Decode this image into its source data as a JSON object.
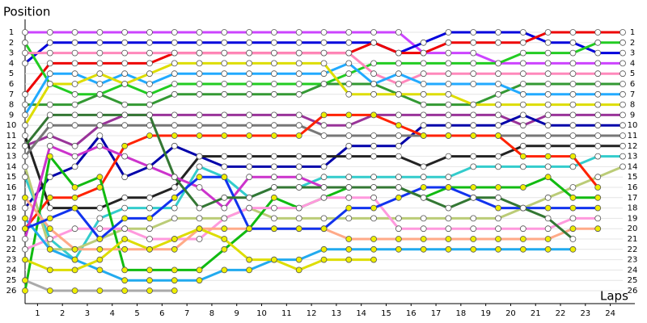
{
  "chart_data": {
    "type": "line",
    "y_axis_label": "Position",
    "x_axis_label": "Laps",
    "x": [
      0,
      1,
      2,
      3,
      4,
      5,
      6,
      7,
      8,
      9,
      10,
      11,
      12,
      13,
      14,
      15,
      16,
      17,
      18,
      19,
      20,
      21,
      22,
      23,
      24
    ],
    "xlim": [
      0,
      24
    ],
    "ylim": [
      1,
      26
    ],
    "y_inverted": true,
    "grid": true,
    "xticks": [
      {
        "value": 0.5,
        "label": "1"
      },
      {
        "value": 1.5,
        "label": "2"
      },
      {
        "value": 2.5,
        "label": "3"
      },
      {
        "value": 3.5,
        "label": "4"
      },
      {
        "value": 4.5,
        "label": "5"
      },
      {
        "value": 5.5,
        "label": "6"
      },
      {
        "value": 6.5,
        "label": "7"
      },
      {
        "value": 7.5,
        "label": "8"
      },
      {
        "value": 8.5,
        "label": "9"
      },
      {
        "value": 9.5,
        "label": "10"
      },
      {
        "value": 10.5,
        "label": "11"
      },
      {
        "value": 11.5,
        "label": "12"
      },
      {
        "value": 12.5,
        "label": "13"
      },
      {
        "value": 13.5,
        "label": "14"
      },
      {
        "value": 14.5,
        "label": "15"
      },
      {
        "value": 15.5,
        "label": "16"
      },
      {
        "value": 16.5,
        "label": "17"
      },
      {
        "value": 17.5,
        "label": "18"
      },
      {
        "value": 18.5,
        "label": "19"
      },
      {
        "value": 19.5,
        "label": "20"
      },
      {
        "value": 20.5,
        "label": "21"
      },
      {
        "value": 21.5,
        "label": "22"
      },
      {
        "value": 22.5,
        "label": "23"
      },
      {
        "value": 23.5,
        "label": "24"
      }
    ],
    "yticks": [
      1,
      2,
      3,
      4,
      5,
      6,
      7,
      8,
      9,
      10,
      11,
      12,
      13,
      14,
      15,
      16,
      17,
      18,
      19,
      20,
      21,
      22,
      23,
      24,
      25,
      26
    ],
    "series": [
      {
        "color": "#cc44ff",
        "marker_color": "#ffffff",
        "values": [
          1,
          1,
          1,
          1,
          1,
          1,
          1,
          1,
          1,
          1,
          1,
          1,
          1,
          1,
          1,
          1,
          3,
          3,
          3,
          4,
          4,
          4,
          4,
          4,
          4
        ]
      },
      {
        "color": "#0000dd",
        "marker_color": "#ffffff",
        "values": [
          4,
          2,
          2,
          2,
          2,
          2,
          2,
          2,
          2,
          2,
          2,
          2,
          2,
          2,
          2,
          3,
          2,
          1,
          1,
          1,
          1,
          2,
          2,
          3,
          3
        ]
      },
      {
        "color": "#ee0000",
        "marker_color": "#ffffff",
        "values": [
          7,
          4,
          4,
          4,
          4,
          4,
          3,
          3,
          3,
          3,
          3,
          3,
          3,
          3,
          2,
          3,
          3,
          2,
          2,
          2,
          2,
          1,
          1,
          1,
          1
        ]
      },
      {
        "color": "#22cc22",
        "marker_color": "#ffffff",
        "values": [
          2,
          6,
          7,
          7,
          6,
          7,
          6,
          6,
          6,
          6,
          6,
          6,
          6,
          5,
          4,
          4,
          4,
          4,
          4,
          4,
          3,
          3,
          3,
          2,
          2
        ]
      },
      {
        "color": "#ff88bb",
        "marker_color": "#ffffff",
        "values": [
          3,
          3,
          3,
          3,
          3,
          3,
          3,
          3,
          3,
          3,
          3,
          3,
          3,
          3,
          5,
          6,
          5,
          5,
          5,
          5,
          5,
          5,
          5,
          5,
          5
        ]
      },
      {
        "color": "#339933",
        "marker_color": "#ffffff",
        "values": [
          8,
          8,
          8,
          7,
          8,
          8,
          7,
          7,
          7,
          7,
          7,
          7,
          6,
          6,
          6,
          7,
          8,
          8,
          8,
          7,
          6,
          6,
          6,
          6,
          6
        ]
      },
      {
        "color": "#22aaff",
        "marker_color": "#ffffff",
        "values": [
          9,
          5,
          5,
          6,
          5,
          6,
          5,
          5,
          5,
          5,
          5,
          5,
          5,
          4,
          6,
          5,
          6,
          6,
          6,
          6,
          7,
          7,
          7,
          7,
          7
        ]
      },
      {
        "color": "#dddd00",
        "marker_color": "#ffffff",
        "values": [
          10,
          6,
          6,
          5,
          6,
          5,
          4,
          4,
          4,
          4,
          4,
          4,
          4,
          7,
          7,
          7,
          7,
          7,
          8,
          8,
          8,
          8,
          8,
          8,
          8
        ]
      },
      {
        "color": "#993399",
        "marker_color": "#ffffff",
        "values": [
          12,
          11,
          12,
          10,
          9,
          9,
          9,
          9,
          9,
          9,
          9,
          9,
          10,
          10,
          9,
          9,
          9,
          9,
          9,
          9,
          10,
          9,
          9,
          9,
          9
        ]
      },
      {
        "color": "#0000aa",
        "marker_color": "#ffffff",
        "values": [
          18,
          15,
          14,
          11,
          15,
          14,
          12,
          13,
          14,
          14,
          14,
          14,
          14,
          12,
          12,
          12,
          10,
          10,
          10,
          10,
          9,
          10,
          10,
          10,
          10
        ]
      },
      {
        "color": "#222222",
        "marker_color": "#ffffff",
        "values": [
          11,
          18,
          18,
          18,
          17,
          17,
          16,
          13,
          13,
          13,
          13,
          13,
          13,
          13,
          13,
          13,
          14,
          13,
          13,
          13,
          12,
          12,
          12,
          12,
          12
        ]
      },
      {
        "color": "#777777",
        "marker_color": "#ffffff",
        "values": [
          13,
          10,
          10,
          10,
          10,
          10,
          10,
          10,
          10,
          10,
          10,
          10,
          11,
          11,
          11,
          11,
          11,
          11,
          11,
          11,
          11,
          11,
          11,
          11,
          11
        ]
      },
      {
        "color": "#33cccc",
        "marker_color": "#ffffff",
        "values": [
          15,
          21,
          23,
          19,
          18,
          18,
          18,
          14,
          15,
          17,
          16,
          16,
          15,
          15,
          15,
          15,
          15,
          15,
          14,
          14,
          14,
          14,
          14,
          13,
          13
        ]
      },
      {
        "color": "#bbcc77",
        "marker_color": "#ffffff",
        "values": [
          14,
          22,
          22,
          21,
          20,
          20,
          19,
          19,
          19,
          18,
          19,
          19,
          19,
          19,
          19,
          19,
          19,
          19,
          19,
          19,
          18,
          17,
          16,
          15,
          14
        ]
      },
      {
        "color": "#ff2200",
        "marker_color": "#eeee00",
        "values": [
          20,
          17,
          17,
          16,
          12,
          11,
          11,
          11,
          11,
          11,
          11,
          11,
          9,
          9,
          9,
          10,
          11,
          11,
          11,
          11,
          13,
          13,
          13,
          16,
          null
        ]
      },
      {
        "color": "#11bb11",
        "marker_color": "#eeee00",
        "values": [
          26,
          13,
          16,
          15,
          24,
          24,
          24,
          24,
          22,
          20,
          17,
          18,
          17,
          16,
          16,
          16,
          17,
          16,
          16,
          16,
          16,
          15,
          17,
          17,
          null
        ]
      },
      {
        "color": "#ff99dd",
        "marker_color": "#ffffff",
        "values": [
          22,
          21,
          20,
          20,
          20,
          21,
          21,
          21,
          19,
          18,
          18,
          18,
          17,
          17,
          17,
          20,
          20,
          20,
          20,
          20,
          20,
          20,
          19,
          19,
          null
        ]
      },
      {
        "color": "#ffaa88",
        "marker_color": "#eeee00",
        "values": [
          17,
          20,
          22,
          22,
          22,
          22,
          22,
          20,
          20,
          20,
          20,
          20,
          20,
          21,
          21,
          21,
          21,
          21,
          21,
          21,
          21,
          21,
          20,
          20,
          null
        ]
      },
      {
        "color": "#aaaaaa",
        "marker_color": "#eeee00",
        "values": [
          25,
          26,
          26,
          26,
          26,
          26,
          26,
          null,
          null,
          null,
          null,
          null,
          null,
          null,
          null,
          null,
          null,
          null,
          null,
          null,
          null,
          null,
          null,
          null,
          null
        ]
      },
      {
        "color": "#22aaee",
        "marker_color": "#eeee00",
        "values": [
          19,
          22,
          23,
          24,
          25,
          25,
          25,
          25,
          24,
          24,
          23,
          23,
          22,
          22,
          22,
          22,
          22,
          22,
          22,
          22,
          22,
          22,
          22,
          null,
          null
        ]
      },
      {
        "color": "#dddd00",
        "marker_color": "#eeee00",
        "values": [
          23,
          24,
          24,
          23,
          21,
          22,
          21,
          20,
          21,
          23,
          23,
          24,
          23,
          23,
          23,
          null,
          null,
          null,
          null,
          null,
          null,
          null,
          null,
          null,
          null
        ]
      },
      {
        "color": "#cc33cc",
        "marker_color": "#ffffff",
        "values": [
          21,
          12,
          13,
          12,
          13,
          14,
          15,
          16,
          18,
          15,
          15,
          15,
          16,
          16,
          null,
          null,
          null,
          null,
          null,
          null,
          null,
          null,
          null,
          null,
          null
        ]
      },
      {
        "color": "#1133ee",
        "marker_color": "#eeee00",
        "values": [
          20,
          19,
          18,
          21,
          19,
          19,
          17,
          15,
          15,
          20,
          20,
          20,
          20,
          18,
          18,
          17,
          16,
          16,
          17,
          18,
          18,
          18,
          18,
          18,
          null
        ]
      },
      {
        "color": "#337733",
        "marker_color": "#ffffff",
        "values": [
          12,
          9,
          9,
          9,
          9,
          9,
          15,
          18,
          17,
          17,
          16,
          16,
          16,
          16,
          16,
          16,
          17,
          18,
          17,
          17,
          18,
          19,
          21,
          null,
          null
        ]
      }
    ]
  }
}
